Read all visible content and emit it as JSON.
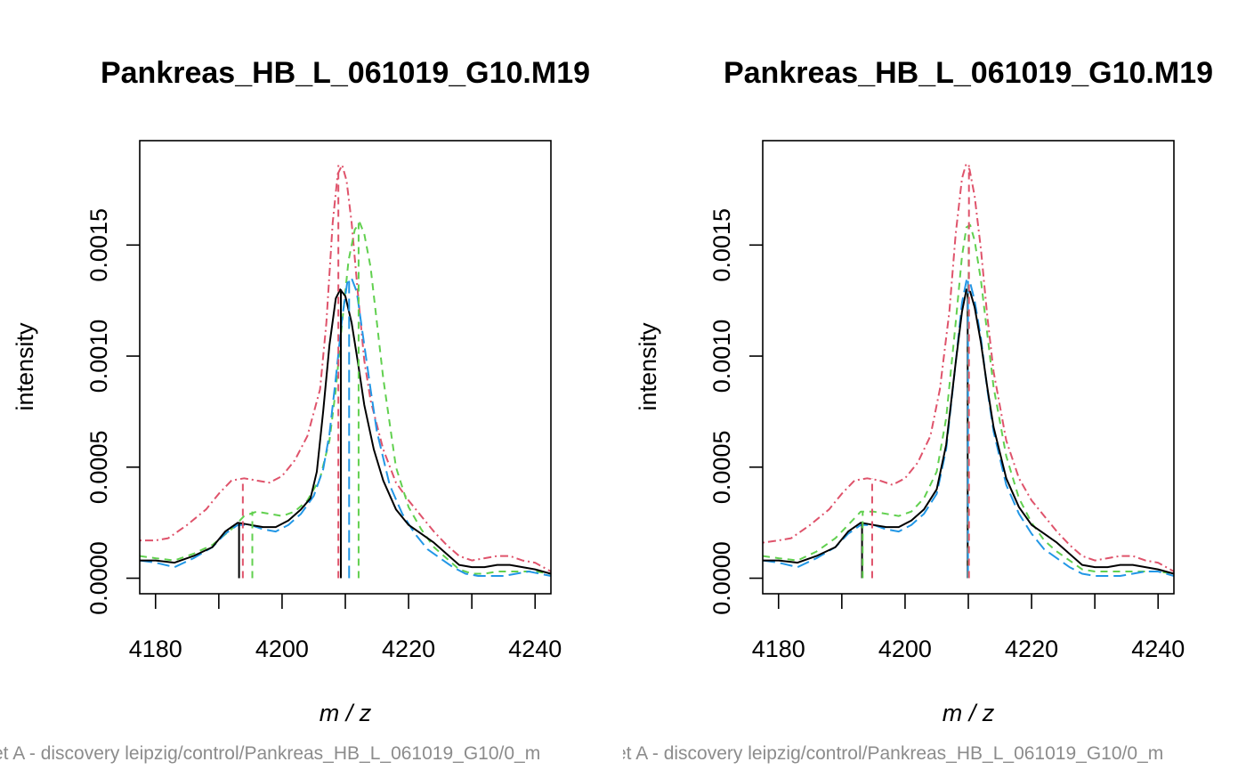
{
  "chart_data": [
    {
      "type": "line",
      "title": "Pankreas_HB_L_061019_G10.M19",
      "xlabel": "m / z",
      "ylabel": "intensity",
      "footer": "et A - discovery leipzig/control/Pankreas_HB_L_061019_G10/0_m",
      "xlim": [
        4177.5,
        4242.5
      ],
      "ylim": [
        -7e-05,
        0.00197
      ],
      "x_ticks": [
        4180,
        4200,
        4220,
        4240
      ],
      "x_tick_labels": [
        "4180",
        "4200",
        "4220",
        "4240"
      ],
      "y_ticks": [
        0.0,
        0.0005,
        0.001,
        0.0015
      ],
      "y_tick_labels": [
        "0.0000",
        "0.0005",
        "0.0010",
        "0.0015"
      ],
      "series": [
        {
          "color": "#DF536B",
          "dash": "dashdot",
          "x": [
            4177.5,
            4180,
            4182,
            4185,
            4188,
            4190,
            4192,
            4194,
            4196,
            4198,
            4200,
            4202,
            4204,
            4206,
            4207,
            4208,
            4208.8,
            4209.5,
            4210.2,
            4211,
            4212,
            4213,
            4214,
            4216,
            4218,
            4220,
            4222,
            4224,
            4226,
            4228,
            4230,
            4232,
            4234,
            4236,
            4238,
            4240,
            4242.5
          ],
          "y": [
            0.00017,
            0.00017,
            0.00018,
            0.00024,
            0.00031,
            0.00038,
            0.00044,
            0.00045,
            0.00044,
            0.00043,
            0.00046,
            0.00053,
            0.00064,
            0.00085,
            0.00115,
            0.0016,
            0.00182,
            0.00186,
            0.00179,
            0.0016,
            0.00128,
            0.00098,
            0.0008,
            0.00058,
            0.00043,
            0.00035,
            0.00028,
            0.00021,
            0.00015,
            0.0001,
            8e-05,
            9e-05,
            0.0001,
            0.0001,
            8e-05,
            7e-05,
            3e-05
          ]
        },
        {
          "color": "#61D04F",
          "dash": "dashed",
          "x": [
            4177.5,
            4180,
            4183,
            4186,
            4189,
            4192,
            4194,
            4196,
            4198,
            4200,
            4202,
            4204,
            4206,
            4207.5,
            4208.5,
            4209.5,
            4210.5,
            4211.5,
            4212.3,
            4213,
            4214,
            4215,
            4216,
            4218,
            4220,
            4222,
            4224,
            4226,
            4228,
            4230,
            4232,
            4234,
            4236,
            4238,
            4240,
            4242.5
          ],
          "y": [
            0.0001,
            9e-05,
            8e-05,
            0.00011,
            0.00015,
            0.00022,
            0.00028,
            0.0003,
            0.00029,
            0.00028,
            0.0003,
            0.00035,
            0.00045,
            0.00062,
            0.00085,
            0.00115,
            0.00143,
            0.00157,
            0.0016,
            0.00155,
            0.0014,
            0.00115,
            0.0009,
            0.0005,
            0.00032,
            0.00022,
            0.00014,
            9e-05,
            4e-05,
            2e-05,
            2e-05,
            3e-05,
            3e-05,
            3e-05,
            3e-05,
            2e-05
          ]
        },
        {
          "color": "#2297E6",
          "dash": "longdash",
          "x": [
            4177.5,
            4180,
            4183,
            4186,
            4189,
            4191,
            4193,
            4195,
            4197,
            4199,
            4201,
            4203,
            4205,
            4206.5,
            4207.5,
            4208.5,
            4209.5,
            4210.3,
            4211,
            4211.8,
            4213,
            4214,
            4215,
            4217,
            4219,
            4221,
            4223,
            4225,
            4227,
            4229,
            4231,
            4233,
            4235,
            4237,
            4239,
            4242.5
          ],
          "y": [
            8e-05,
            7e-05,
            5e-05,
            9e-05,
            0.00014,
            0.0002,
            0.00024,
            0.00024,
            0.00022,
            0.00021,
            0.00024,
            0.00029,
            0.00037,
            0.00049,
            0.00065,
            0.0009,
            0.00117,
            0.00133,
            0.00135,
            0.00129,
            0.00105,
            0.00085,
            0.00066,
            0.00042,
            0.00029,
            0.0002,
            0.00013,
            9e-05,
            5e-05,
            2e-05,
            1e-05,
            1e-05,
            1e-05,
            2e-05,
            3e-05,
            1e-05
          ]
        },
        {
          "color": "#000000",
          "dash": "solid",
          "x": [
            4177.5,
            4180,
            4183,
            4186,
            4189,
            4191,
            4193,
            4195,
            4197,
            4199,
            4201,
            4203,
            4204.5,
            4205.5,
            4206.5,
            4207.5,
            4208.5,
            4209.2,
            4210,
            4211,
            4212,
            4213,
            4214.5,
            4216,
            4218,
            4220,
            4222,
            4224,
            4226,
            4228,
            4230,
            4232,
            4234,
            4236,
            4238,
            4240,
            4242.5
          ],
          "y": [
            8e-05,
            8e-05,
            7e-05,
            0.0001,
            0.00014,
            0.00021,
            0.00025,
            0.00024,
            0.00023,
            0.00023,
            0.00026,
            0.00031,
            0.00036,
            0.00048,
            0.00075,
            0.00105,
            0.00126,
            0.0013,
            0.00127,
            0.00115,
            0.00097,
            0.00078,
            0.00058,
            0.00044,
            0.00031,
            0.00024,
            0.0002,
            0.00016,
            0.00011,
            6e-05,
            5e-05,
            5e-05,
            6e-05,
            6e-05,
            5e-05,
            4e-05,
            2e-05
          ]
        }
      ],
      "peaks": [
        {
          "color": "#000000",
          "dash": "solid",
          "x": 4193.2,
          "y": 0.00025
        },
        {
          "color": "#DF536B",
          "dash": "dashed",
          "x": 4193.8,
          "y": 0.00045
        },
        {
          "color": "#61D04F",
          "dash": "dashed",
          "x": 4195.3,
          "y": 0.0003
        },
        {
          "color": "#DF536B",
          "dash": "dashed",
          "x": 4208.9,
          "y": 0.00186
        },
        {
          "color": "#000000",
          "dash": "solid",
          "x": 4209.3,
          "y": 0.0013
        },
        {
          "color": "#2297E6",
          "dash": "longdash",
          "x": 4210.6,
          "y": 0.00135
        },
        {
          "color": "#61D04F",
          "dash": "dashed",
          "x": 4212.1,
          "y": 0.0016
        }
      ]
    },
    {
      "type": "line",
      "title": "Pankreas_HB_L_061019_G10.M19",
      "xlabel": "m / z",
      "ylabel": "intensity",
      "footer": "et A - discovery leipzig/control/Pankreas_HB_L_061019_G10/0_m",
      "xlim": [
        4177.5,
        4242.5
      ],
      "ylim": [
        -7e-05,
        0.00197
      ],
      "x_ticks": [
        4180,
        4200,
        4220,
        4240
      ],
      "x_tick_labels": [
        "4180",
        "4200",
        "4220",
        "4240"
      ],
      "y_ticks": [
        0.0,
        0.0005,
        0.001,
        0.0015
      ],
      "y_tick_labels": [
        "0.0000",
        "0.0005",
        "0.0010",
        "0.0015"
      ],
      "series": [
        {
          "color": "#DF536B",
          "dash": "dashdot",
          "x": [
            4177.5,
            4180,
            4182,
            4185,
            4188,
            4190,
            4192,
            4194,
            4196,
            4198,
            4200,
            4202,
            4204,
            4205.5,
            4207,
            4208,
            4209,
            4209.6,
            4210.2,
            4211,
            4212,
            4213,
            4214,
            4216,
            4218,
            4220,
            4222,
            4224,
            4226,
            4228,
            4230,
            4232,
            4234,
            4236,
            4238,
            4240,
            4242.5
          ],
          "y": [
            0.00016,
            0.00017,
            0.00018,
            0.00024,
            0.00031,
            0.00038,
            0.00044,
            0.00045,
            0.00044,
            0.00042,
            0.00045,
            0.00052,
            0.00064,
            0.00085,
            0.0012,
            0.00155,
            0.0018,
            0.00186,
            0.00184,
            0.00172,
            0.00148,
            0.00118,
            0.00093,
            0.00062,
            0.00045,
            0.00035,
            0.00028,
            0.00021,
            0.00015,
            0.0001,
            8e-05,
            9e-05,
            0.0001,
            0.0001,
            8e-05,
            7e-05,
            3e-05
          ]
        },
        {
          "color": "#61D04F",
          "dash": "dashed",
          "x": [
            4177.5,
            4180,
            4183,
            4186,
            4189,
            4191,
            4193,
            4195,
            4197,
            4199,
            4201,
            4203,
            4205,
            4206.5,
            4208,
            4209,
            4209.7,
            4210.3,
            4211,
            4212,
            4213,
            4214,
            4216,
            4218,
            4220,
            4222,
            4224,
            4226,
            4228,
            4230,
            4232,
            4234,
            4236,
            4238,
            4240,
            4242.5
          ],
          "y": [
            0.0001,
            9e-05,
            8e-05,
            0.00012,
            0.00018,
            0.00024,
            0.0003,
            0.0003,
            0.00029,
            0.00028,
            0.0003,
            0.00036,
            0.00048,
            0.00072,
            0.00115,
            0.00145,
            0.00158,
            0.00159,
            0.00152,
            0.00134,
            0.0011,
            0.00086,
            0.00055,
            0.00036,
            0.00025,
            0.00017,
            0.00012,
            8e-05,
            4e-05,
            3e-05,
            3e-05,
            3e-05,
            3e-05,
            3e-05,
            3e-05,
            2e-05
          ]
        },
        {
          "color": "#2297E6",
          "dash": "longdash",
          "x": [
            4177.5,
            4180,
            4183,
            4186,
            4189,
            4191,
            4193,
            4195,
            4197,
            4199,
            4201,
            4203,
            4205,
            4206.5,
            4208,
            4209,
            4209.7,
            4210.3,
            4211,
            4212,
            4213,
            4214,
            4216,
            4218,
            4220,
            4222,
            4224,
            4226,
            4228,
            4230,
            4232,
            4234,
            4236,
            4238,
            4240,
            4242.5
          ],
          "y": [
            8e-05,
            7e-05,
            5e-05,
            9e-05,
            0.00014,
            0.0002,
            0.00024,
            0.00024,
            0.00022,
            0.00021,
            0.00024,
            0.00029,
            0.00038,
            0.00058,
            0.00097,
            0.00124,
            0.00134,
            0.00133,
            0.00125,
            0.00108,
            0.00085,
            0.00066,
            0.00042,
            0.00029,
            0.0002,
            0.00013,
            9e-05,
            5e-05,
            2e-05,
            1e-05,
            1e-05,
            1e-05,
            2e-05,
            3e-05,
            3e-05,
            1e-05
          ]
        },
        {
          "color": "#000000",
          "dash": "solid",
          "x": [
            4177.5,
            4180,
            4183,
            4186,
            4189,
            4191,
            4193,
            4195,
            4197,
            4199,
            4201,
            4203,
            4205,
            4206.5,
            4208,
            4209,
            4209.7,
            4210.3,
            4211,
            4212,
            4213,
            4214,
            4216,
            4218,
            4220,
            4222,
            4224,
            4226,
            4228,
            4230,
            4232,
            4234,
            4236,
            4238,
            4240,
            4242.5
          ],
          "y": [
            8e-05,
            8e-05,
            7e-05,
            0.0001,
            0.00014,
            0.00021,
            0.00025,
            0.00024,
            0.00023,
            0.00023,
            0.00026,
            0.00031,
            0.0004,
            0.0006,
            0.00097,
            0.0012,
            0.0013,
            0.00129,
            0.00122,
            0.00106,
            0.00086,
            0.00068,
            0.00045,
            0.00032,
            0.00024,
            0.0002,
            0.00016,
            0.00011,
            6e-05,
            5e-05,
            5e-05,
            6e-05,
            6e-05,
            5e-05,
            4e-05,
            2e-05
          ]
        }
      ],
      "peaks": [
        {
          "color": "#000000",
          "dash": "solid",
          "x": 4193.2,
          "y": 0.00025
        },
        {
          "color": "#61D04F",
          "dash": "dashed",
          "x": 4193.3,
          "y": 0.0003
        },
        {
          "color": "#DF536B",
          "dash": "dashed",
          "x": 4194.8,
          "y": 0.00045
        },
        {
          "color": "#000000",
          "dash": "solid",
          "x": 4209.9,
          "y": 0.0013
        },
        {
          "color": "#2297E6",
          "dash": "longdash",
          "x": 4209.95,
          "y": 0.00134
        },
        {
          "color": "#61D04F",
          "dash": "dashed",
          "x": 4210.05,
          "y": 0.00159
        },
        {
          "color": "#DF536B",
          "dash": "dashed",
          "x": 4210.1,
          "y": 0.00186
        }
      ]
    }
  ]
}
